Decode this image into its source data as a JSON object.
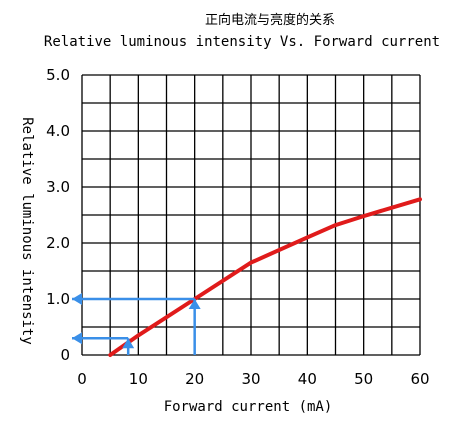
{
  "chart_data": {
    "type": "line",
    "title": "正向电流与亮度的关系",
    "subtitle": "Relative luminous intensity Vs. Forward current",
    "xlabel": "Forward current (mA)",
    "ylabel": "Relative luminous intensity",
    "xlim": [
      0,
      60
    ],
    "ylim": [
      0,
      5.0
    ],
    "x_ticks": [
      0,
      10,
      20,
      30,
      40,
      50,
      60
    ],
    "y_ticks": [
      0,
      1.0,
      2.0,
      3.0,
      4.0,
      5.0
    ],
    "x_tick_labels": [
      "0",
      "10",
      "20",
      "30",
      "40",
      "50",
      "60"
    ],
    "y_tick_labels": [
      "0",
      "1.0",
      "2.0",
      "3.0",
      "4.0",
      "5.0"
    ],
    "x_grid_step": 5,
    "y_grid_step": 0.5,
    "grid": true,
    "series": [
      {
        "color": "#e01b1b",
        "x": [
          5,
          10,
          20,
          30,
          40,
          45,
          50,
          60
        ],
        "y": [
          0,
          0.35,
          1.0,
          1.65,
          2.1,
          2.32,
          2.48,
          2.78
        ]
      }
    ],
    "annotations": [
      {
        "type": "vertical-arrow",
        "color": "#3a8fe8",
        "x": 20,
        "y_from": 0,
        "y_to": 1.0
      },
      {
        "type": "horizontal-arrow",
        "color": "#3a8fe8",
        "y": 1.0,
        "x_from": 20,
        "x_to": 0
      },
      {
        "type": "vertical-arrow",
        "color": "#3a8fe8",
        "x": 8.2,
        "y_from": 0,
        "y_to": 0.3
      },
      {
        "type": "horizontal-arrow",
        "color": "#3a8fe8",
        "y": 0.3,
        "x_from": 8.2,
        "x_to": 0
      }
    ]
  }
}
